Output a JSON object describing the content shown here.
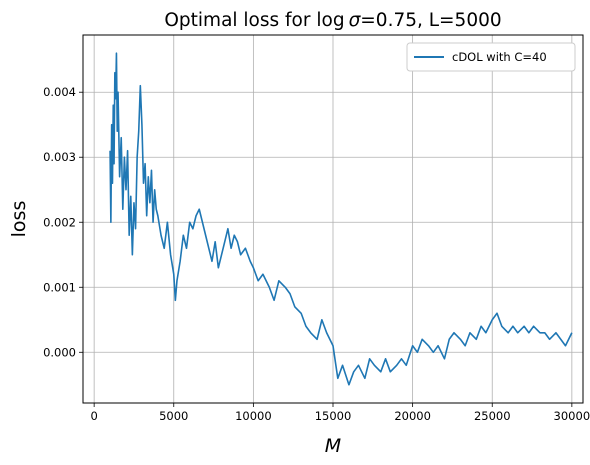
{
  "chart_data": {
    "type": "line",
    "title_prefix": "Optimal loss for ",
    "title_math_log": "log",
    "title_math_sigma": "σ",
    "title_suffix": "=0.75, L=5000",
    "xlabel": "M",
    "ylabel": "loss",
    "xlim": [
      -700,
      30700
    ],
    "ylim": [
      -0.00078,
      0.00488
    ],
    "xticks": [
      0,
      5000,
      10000,
      15000,
      20000,
      25000,
      30000
    ],
    "xtick_labels": [
      "0",
      "5000",
      "10000",
      "15000",
      "20000",
      "25000",
      "30000"
    ],
    "yticks": [
      0.0,
      0.001,
      0.002,
      0.003,
      0.004
    ],
    "ytick_labels": [
      "0.000",
      "0.001",
      "0.002",
      "0.003",
      "0.004"
    ],
    "grid": true,
    "legend_position": "top-right",
    "colors": {
      "series": "#1f77b4",
      "grid": "#b0b0b0"
    },
    "series": [
      {
        "name": "cDOL with C=40",
        "x": [
          1000,
          1050,
          1100,
          1150,
          1200,
          1250,
          1300,
          1350,
          1400,
          1450,
          1500,
          1600,
          1700,
          1800,
          1900,
          2000,
          2100,
          2200,
          2300,
          2400,
          2500,
          2600,
          2700,
          2800,
          2900,
          3000,
          3100,
          3200,
          3300,
          3400,
          3500,
          3600,
          3700,
          3800,
          3900,
          4000,
          4200,
          4400,
          4600,
          4800,
          5000,
          5100,
          5200,
          5400,
          5600,
          5800,
          6000,
          6200,
          6400,
          6600,
          6800,
          7000,
          7200,
          7400,
          7600,
          7800,
          8000,
          8200,
          8400,
          8600,
          8800,
          9000,
          9200,
          9500,
          9800,
          10000,
          10300,
          10600,
          11000,
          11300,
          11600,
          12000,
          12300,
          12600,
          13000,
          13300,
          13600,
          14000,
          14300,
          14600,
          15000,
          15300,
          15600,
          16000,
          16300,
          16600,
          17000,
          17300,
          17600,
          18000,
          18300,
          18600,
          19000,
          19300,
          19600,
          20000,
          20300,
          20600,
          21000,
          21300,
          21600,
          22000,
          22300,
          22600,
          23000,
          23300,
          23600,
          24000,
          24300,
          24600,
          25000,
          25300,
          25600,
          26000,
          26300,
          26600,
          27000,
          27300,
          27600,
          28000,
          28300,
          28600,
          29000,
          29300,
          29600,
          30000
        ],
        "values": [
          0.0031,
          0.002,
          0.0035,
          0.0026,
          0.0038,
          0.0029,
          0.0043,
          0.0039,
          0.0046,
          0.0034,
          0.004,
          0.0027,
          0.0033,
          0.0022,
          0.003,
          0.0025,
          0.0031,
          0.0018,
          0.0024,
          0.0015,
          0.0023,
          0.0019,
          0.003,
          0.0034,
          0.0041,
          0.0035,
          0.0026,
          0.0029,
          0.0021,
          0.0027,
          0.0023,
          0.0028,
          0.002,
          0.0025,
          0.0022,
          0.0021,
          0.0018,
          0.0016,
          0.002,
          0.0015,
          0.0012,
          0.0008,
          0.0011,
          0.0014,
          0.0018,
          0.0016,
          0.002,
          0.0019,
          0.0021,
          0.0022,
          0.002,
          0.0018,
          0.0016,
          0.0014,
          0.0017,
          0.0013,
          0.0015,
          0.0017,
          0.0019,
          0.0016,
          0.0018,
          0.0017,
          0.0015,
          0.0016,
          0.0014,
          0.0013,
          0.0011,
          0.0012,
          0.001,
          0.0008,
          0.0011,
          0.001,
          0.0009,
          0.0007,
          0.0006,
          0.0004,
          0.0003,
          0.0002,
          0.0005,
          0.0003,
          0.0001,
          -0.0004,
          -0.0002,
          -0.0005,
          -0.0003,
          -0.0002,
          -0.0004,
          -0.0001,
          -0.0002,
          -0.0003,
          -0.0001,
          -0.0003,
          -0.0002,
          -0.0001,
          -0.0002,
          0.0001,
          0.0,
          0.0002,
          0.0001,
          0.0,
          0.0001,
          -0.0001,
          0.0002,
          0.0003,
          0.0002,
          0.0001,
          0.0003,
          0.0002,
          0.0004,
          0.0003,
          0.0005,
          0.0006,
          0.0004,
          0.0003,
          0.0004,
          0.0003,
          0.0004,
          0.0003,
          0.0004,
          0.0003,
          0.0003,
          0.0002,
          0.0003,
          0.0002,
          0.0001,
          0.0003
        ]
      }
    ]
  }
}
